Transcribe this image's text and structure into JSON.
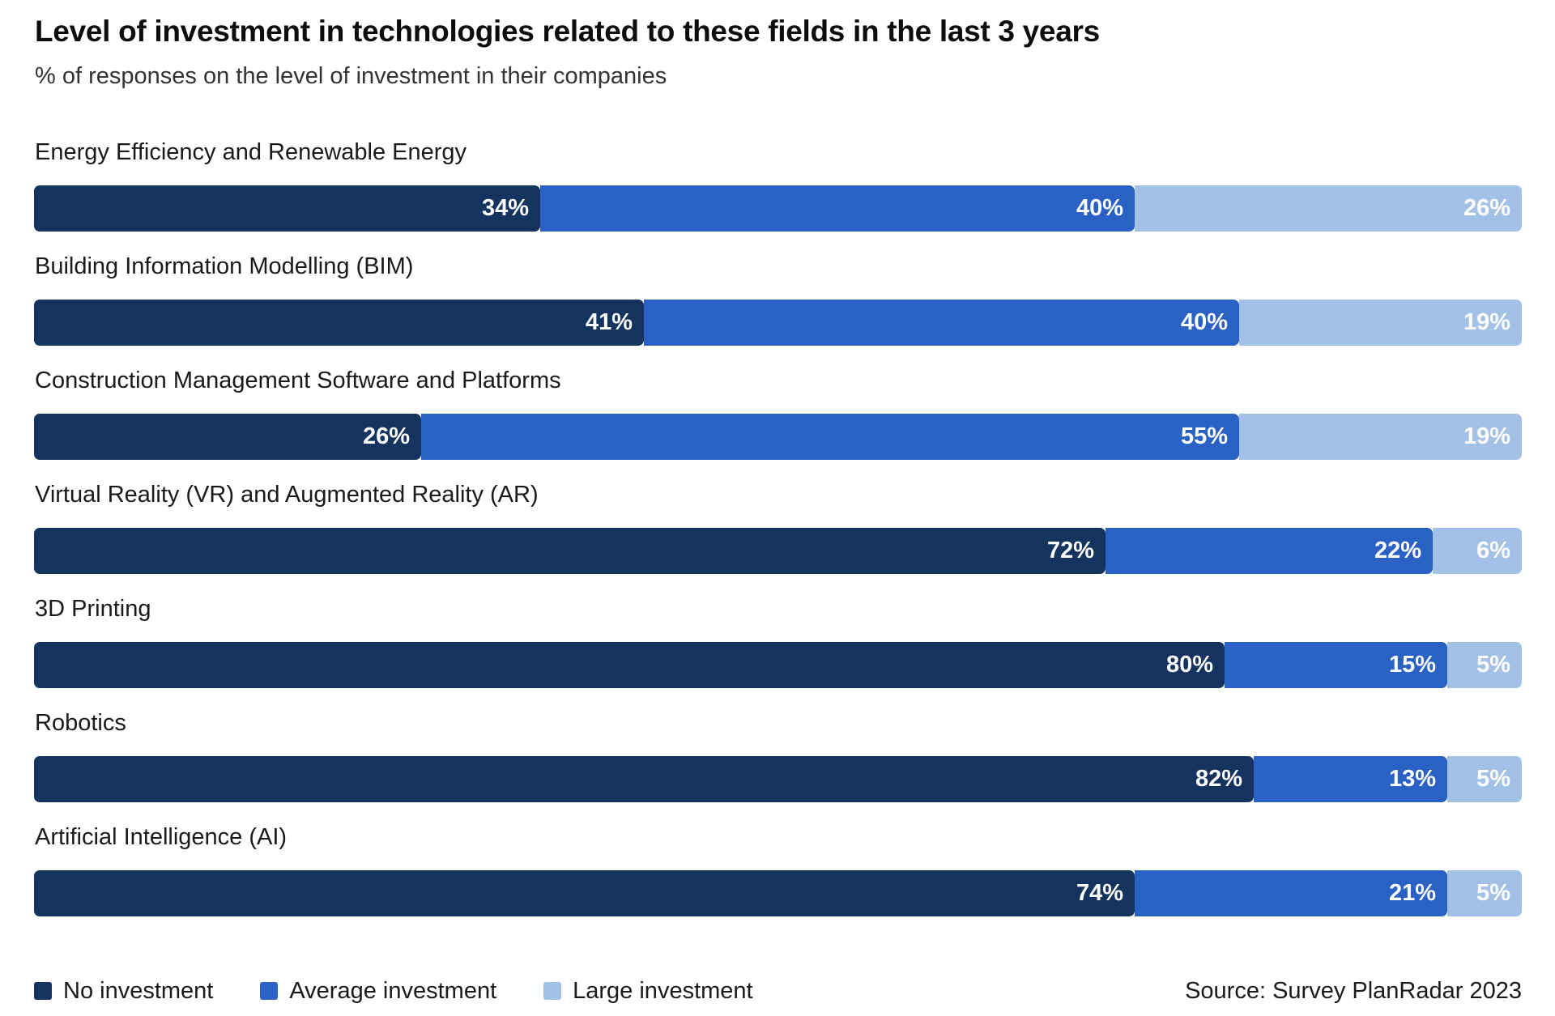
{
  "chart_data": {
    "type": "bar",
    "orientation": "horizontal",
    "stacked": true,
    "title": "Level of investment in technologies related to these fields in the last 3 years",
    "subtitle": "% of responses on the level of investment in their companies",
    "categories": [
      "Energy Efficiency and Renewable Energy",
      "Building Information Modelling (BIM)",
      "Construction Management Software and Platforms",
      "Virtual Reality (VR) and Augmented Reality (AR)",
      "3D Printing",
      "Robotics",
      "Artificial Intelligence (AI)"
    ],
    "series": [
      {
        "name": "No investment",
        "color": "#14335e",
        "values": [
          34,
          41,
          26,
          72,
          80,
          82,
          74
        ]
      },
      {
        "name": "Average investment",
        "color": "#2962c4",
        "values": [
          40,
          40,
          55,
          22,
          15,
          13,
          21
        ]
      },
      {
        "name": "Large investment",
        "color": "#a3c1e6",
        "values": [
          26,
          19,
          19,
          6,
          5,
          5,
          5
        ]
      }
    ],
    "value_suffix": "%",
    "xlim": [
      0,
      100
    ],
    "legend_position": "bottom-left",
    "source": "Source: Survey PlanRadar 2023"
  }
}
